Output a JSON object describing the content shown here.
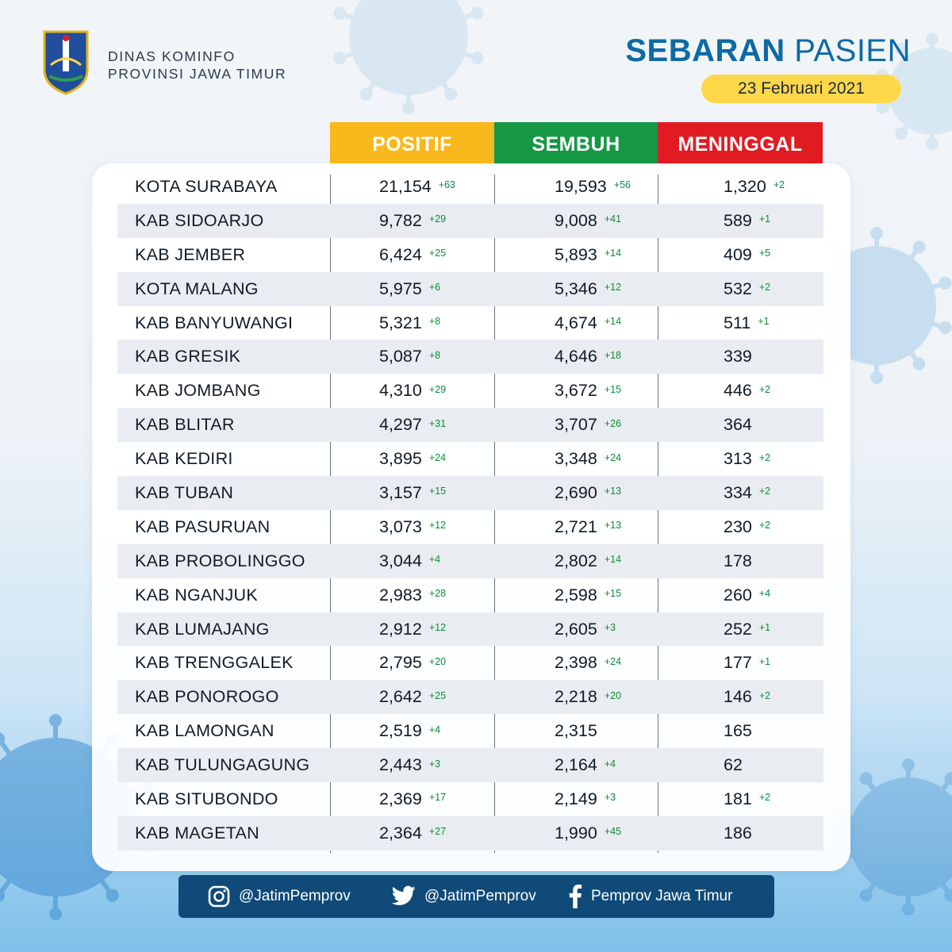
{
  "header": {
    "org_line1": "DINAS KOMINFO",
    "org_line2": "PROVINSI JAWA TIMUR",
    "title_bold": "SEBARAN",
    "title_light": "PASIEN",
    "date": "23 Februari 2021"
  },
  "columns": {
    "positif": "POSITIF",
    "sembuh": "SEMBUH",
    "meninggal": "MENINGGAL"
  },
  "colors": {
    "positif": "#f9b81b",
    "sembuh": "#169845",
    "meninggal": "#e11b22",
    "date_pill": "#ffd84a",
    "title": "#0d6aa5",
    "footer": "#0f4a78"
  },
  "rows": [
    {
      "name": "KOTA SURABAYA",
      "positif": "21,154",
      "positif_delta": "+63",
      "sembuh": "19,593",
      "sembuh_delta": "+56",
      "meninggal": "1,320",
      "meninggal_delta": "+2"
    },
    {
      "name": "KAB SIDOARJO",
      "positif": "9,782",
      "positif_delta": "+29",
      "sembuh": "9,008",
      "sembuh_delta": "+41",
      "meninggal": "589",
      "meninggal_delta": "+1"
    },
    {
      "name": "KAB JEMBER",
      "positif": "6,424",
      "positif_delta": "+25",
      "sembuh": "5,893",
      "sembuh_delta": "+14",
      "meninggal": "409",
      "meninggal_delta": "+5"
    },
    {
      "name": "KOTA MALANG",
      "positif": "5,975",
      "positif_delta": "+6",
      "sembuh": "5,346",
      "sembuh_delta": "+12",
      "meninggal": "532",
      "meninggal_delta": "+2"
    },
    {
      "name": "KAB BANYUWANGI",
      "positif": "5,321",
      "positif_delta": "+8",
      "sembuh": "4,674",
      "sembuh_delta": "+14",
      "meninggal": "511",
      "meninggal_delta": "+1"
    },
    {
      "name": "KAB GRESIK",
      "positif": "5,087",
      "positif_delta": "+8",
      "sembuh": "4,646",
      "sembuh_delta": "+18",
      "meninggal": "339",
      "meninggal_delta": ""
    },
    {
      "name": "KAB JOMBANG",
      "positif": "4,310",
      "positif_delta": "+29",
      "sembuh": "3,672",
      "sembuh_delta": "+15",
      "meninggal": "446",
      "meninggal_delta": "+2"
    },
    {
      "name": "KAB BLITAR",
      "positif": "4,297",
      "positif_delta": "+31",
      "sembuh": "3,707",
      "sembuh_delta": "+26",
      "meninggal": "364",
      "meninggal_delta": ""
    },
    {
      "name": "KAB KEDIRI",
      "positif": "3,895",
      "positif_delta": "+24",
      "sembuh": "3,348",
      "sembuh_delta": "+24",
      "meninggal": "313",
      "meninggal_delta": "+2"
    },
    {
      "name": "KAB TUBAN",
      "positif": "3,157",
      "positif_delta": "+15",
      "sembuh": "2,690",
      "sembuh_delta": "+13",
      "meninggal": "334",
      "meninggal_delta": "+2"
    },
    {
      "name": "KAB PASURUAN",
      "positif": "3,073",
      "positif_delta": "+12",
      "sembuh": "2,721",
      "sembuh_delta": "+13",
      "meninggal": "230",
      "meninggal_delta": "+2"
    },
    {
      "name": "KAB PROBOLINGGO",
      "positif": "3,044",
      "positif_delta": "+4",
      "sembuh": "2,802",
      "sembuh_delta": "+14",
      "meninggal": "178",
      "meninggal_delta": ""
    },
    {
      "name": "KAB NGANJUK",
      "positif": "2,983",
      "positif_delta": "+28",
      "sembuh": "2,598",
      "sembuh_delta": "+15",
      "meninggal": "260",
      "meninggal_delta": "+4"
    },
    {
      "name": "KAB LUMAJANG",
      "positif": "2,912",
      "positif_delta": "+12",
      "sembuh": "2,605",
      "sembuh_delta": "+3",
      "meninggal": "252",
      "meninggal_delta": "+1"
    },
    {
      "name": "KAB TRENGGALEK",
      "positif": "2,795",
      "positif_delta": "+20",
      "sembuh": "2,398",
      "sembuh_delta": "+24",
      "meninggal": "177",
      "meninggal_delta": "+1"
    },
    {
      "name": "KAB PONOROGO",
      "positif": "2,642",
      "positif_delta": "+25",
      "sembuh": "2,218",
      "sembuh_delta": "+20",
      "meninggal": "146",
      "meninggal_delta": "+2"
    },
    {
      "name": "KAB LAMONGAN",
      "positif": "2,519",
      "positif_delta": "+4",
      "sembuh": "2,315",
      "sembuh_delta": "",
      "meninggal": "165",
      "meninggal_delta": ""
    },
    {
      "name": "KAB TULUNGAGUNG",
      "positif": "2,443",
      "positif_delta": "+3",
      "sembuh": "2,164",
      "sembuh_delta": "+4",
      "meninggal": "62",
      "meninggal_delta": ""
    },
    {
      "name": "KAB SITUBONDO",
      "positif": "2,369",
      "positif_delta": "+17",
      "sembuh": "2,149",
      "sembuh_delta": "+3",
      "meninggal": "181",
      "meninggal_delta": "+2"
    },
    {
      "name": "KAB MAGETAN",
      "positif": "2,364",
      "positif_delta": "+27",
      "sembuh": "1,990",
      "sembuh_delta": "+45",
      "meninggal": "186",
      "meninggal_delta": ""
    }
  ],
  "footer": {
    "instagram": "@JatimPemprov",
    "twitter": "@JatimPemprov",
    "facebook": "Pemprov Jawa Timur"
  }
}
